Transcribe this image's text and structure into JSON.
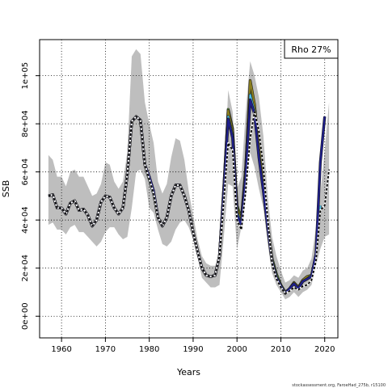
{
  "chart_data": {
    "type": "line",
    "title": "",
    "xlabel": "Years",
    "ylabel": "SSB",
    "xlim": [
      1955,
      2023
    ],
    "ylim": [
      -9000,
      115000
    ],
    "x_ticks": [
      1960,
      1970,
      1980,
      1990,
      2000,
      2010,
      2020
    ],
    "y_ticks": [
      0,
      20000,
      40000,
      60000,
      80000,
      100000
    ],
    "y_tick_labels": [
      "0e+00",
      "2e+04",
      "4e+04",
      "6e+04",
      "8e+04",
      "1e+05"
    ],
    "grid": true,
    "legend": {
      "placement": "top-right",
      "text": "Rho 27%"
    },
    "footer": "stockassessment.org, FaroeHad_275b, r15100",
    "colors": {
      "band": "#bebebe",
      "final": "#000000",
      "retro_peels": [
        "#1e1e8c",
        "#4cc0e8",
        "#8a7e1e",
        "#72c43c"
      ],
      "outline": "#1f1f1f"
    },
    "confidence_band": {
      "x": [
        1957,
        1958,
        1959,
        1960,
        1961,
        1962,
        1963,
        1964,
        1965,
        1966,
        1967,
        1968,
        1969,
        1970,
        1971,
        1972,
        1973,
        1974,
        1975,
        1976,
        1977,
        1978,
        1979,
        1980,
        1981,
        1982,
        1983,
        1984,
        1985,
        1986,
        1987,
        1988,
        1989,
        1990,
        1991,
        1992,
        1993,
        1994,
        1995,
        1996,
        1997,
        1998,
        1999,
        2000,
        2001,
        2002,
        2003,
        2004,
        2005,
        2006,
        2007,
        2008,
        2009,
        2010,
        2011,
        2012,
        2013,
        2014,
        2015,
        2016,
        2017,
        2018,
        2019,
        2020,
        2021
      ],
      "lower": [
        38000,
        39000,
        36000,
        36000,
        34000,
        37000,
        38000,
        35000,
        35000,
        33000,
        31000,
        29000,
        31000,
        35000,
        37000,
        37000,
        34000,
        32000,
        33000,
        45000,
        60000,
        61000,
        57000,
        45000,
        43000,
        36000,
        30000,
        29000,
        31000,
        36000,
        39000,
        40000,
        37000,
        32000,
        25000,
        16000,
        14000,
        12000,
        12000,
        13000,
        33000,
        55000,
        54000,
        28000,
        37000,
        60000,
        68000,
        62000,
        53000,
        45000,
        30000,
        18000,
        13000,
        10000,
        7000,
        8000,
        10000,
        8000,
        10000,
        11000,
        13000,
        21000,
        28000,
        33000,
        34000
      ],
      "upper": [
        67000,
        65000,
        58000,
        58000,
        54000,
        60000,
        61000,
        58000,
        58000,
        54000,
        50000,
        51000,
        55000,
        64000,
        63000,
        56000,
        53000,
        56000,
        68000,
        108000,
        111000,
        109000,
        89000,
        80000,
        72000,
        56000,
        51000,
        55000,
        66000,
        74000,
        73000,
        65000,
        52000,
        42000,
        32000,
        25000,
        22000,
        21000,
        21000,
        24000,
        55000,
        94000,
        85000,
        53000,
        58000,
        85000,
        106000,
        100000,
        91000,
        75000,
        50000,
        33000,
        25000,
        19000,
        14000,
        15000,
        17000,
        16000,
        19000,
        20000,
        24000,
        37000,
        51000,
        69000,
        89000
      ]
    },
    "series": [
      {
        "name": "",
        "color_key": "retro_peels.3",
        "x": [
          1957,
          1958,
          1959,
          1960,
          1961,
          1962,
          1963,
          1964,
          1965,
          1966,
          1967,
          1968,
          1969,
          1970,
          1971,
          1972,
          1973,
          1974,
          1975,
          1976,
          1977,
          1978,
          1979,
          1980,
          1981,
          1982,
          1983,
          1984,
          1985,
          1986,
          1987,
          1988,
          1989,
          1990,
          1991,
          1992,
          1993,
          1994,
          1995,
          1996,
          1997,
          1998,
          1999,
          2000,
          2001,
          2002,
          2003,
          2004,
          2005,
          2006,
          2007,
          2008,
          2009,
          2010,
          2011,
          2012,
          2013,
          2014,
          2015,
          2016
        ],
        "y": [
          50000,
          50500,
          45000,
          45000,
          42500,
          47000,
          48000,
          44000,
          44500,
          42000,
          37500,
          40000,
          47500,
          50000,
          49500,
          45000,
          42500,
          45000,
          59000,
          81000,
          83000,
          81500,
          63000,
          57000,
          51000,
          41000,
          37500,
          41000,
          50000,
          54500,
          54500,
          50000,
          44000,
          35000,
          27000,
          20000,
          17000,
          16500,
          17000,
          25000,
          53500,
          86000,
          78000,
          46000,
          40500,
          62000,
          95000,
          87000,
          69000,
          54000,
          38000,
          24000,
          17500,
          13000,
          10000,
          11500,
          14000,
          12000,
          15000,
          16000
        ]
      },
      {
        "name": "",
        "color_key": "retro_peels.2",
        "x": [
          1957,
          1958,
          1959,
          1960,
          1961,
          1962,
          1963,
          1964,
          1965,
          1966,
          1967,
          1968,
          1969,
          1970,
          1971,
          1972,
          1973,
          1974,
          1975,
          1976,
          1977,
          1978,
          1979,
          1980,
          1981,
          1982,
          1983,
          1984,
          1985,
          1986,
          1987,
          1988,
          1989,
          1990,
          1991,
          1992,
          1993,
          1994,
          1995,
          1996,
          1997,
          1998,
          1999,
          2000,
          2001,
          2002,
          2003,
          2004,
          2005,
          2006,
          2007,
          2008,
          2009,
          2010,
          2011,
          2012,
          2013,
          2014,
          2015,
          2016,
          2017
        ],
        "y": [
          50000,
          50500,
          45000,
          45000,
          42500,
          47000,
          48000,
          44000,
          44500,
          42000,
          37500,
          40000,
          47500,
          50000,
          49500,
          45000,
          42500,
          45000,
          59000,
          81000,
          83000,
          81500,
          63000,
          57000,
          51000,
          41000,
          37500,
          41000,
          50000,
          54500,
          54500,
          50000,
          44000,
          35000,
          27000,
          20000,
          17000,
          16500,
          17000,
          25000,
          53500,
          85500,
          77000,
          45000,
          39500,
          61000,
          98000,
          88000,
          70000,
          55000,
          38000,
          23000,
          16500,
          12500,
          9500,
          11500,
          14000,
          12000,
          15000,
          16500,
          17000
        ]
      },
      {
        "name": "",
        "color_key": "retro_peels.1",
        "x": [
          1957,
          1958,
          1959,
          1960,
          1961,
          1962,
          1963,
          1964,
          1965,
          1966,
          1967,
          1968,
          1969,
          1970,
          1971,
          1972,
          1973,
          1974,
          1975,
          1976,
          1977,
          1978,
          1979,
          1980,
          1981,
          1982,
          1983,
          1984,
          1985,
          1986,
          1987,
          1988,
          1989,
          1990,
          1991,
          1992,
          1993,
          1994,
          1995,
          1996,
          1997,
          1998,
          1999,
          2000,
          2001,
          2002,
          2003,
          2004,
          2005,
          2006,
          2007,
          2008,
          2009,
          2010,
          2011,
          2012,
          2013,
          2014,
          2015,
          2016,
          2017,
          2018,
          2019
        ],
        "y": [
          50000,
          50500,
          45000,
          45000,
          42500,
          47000,
          48000,
          44000,
          44500,
          42000,
          37500,
          40000,
          47500,
          50000,
          49500,
          45000,
          42500,
          45000,
          59000,
          81000,
          83000,
          81500,
          63000,
          57000,
          51000,
          41000,
          37500,
          41000,
          50000,
          54500,
          54500,
          50000,
          44000,
          35000,
          27000,
          20000,
          17000,
          16500,
          17000,
          25000,
          52000,
          83000,
          75000,
          43000,
          38500,
          59000,
          92000,
          85000,
          67000,
          52500,
          37000,
          23000,
          16500,
          12500,
          9500,
          11500,
          13500,
          11500,
          14500,
          15500,
          17000,
          25000,
          46000
        ]
      },
      {
        "name": "",
        "color_key": "retro_peels.0",
        "x": [
          1957,
          1958,
          1959,
          1960,
          1961,
          1962,
          1963,
          1964,
          1965,
          1966,
          1967,
          1968,
          1969,
          1970,
          1971,
          1972,
          1973,
          1974,
          1975,
          1976,
          1977,
          1978,
          1979,
          1980,
          1981,
          1982,
          1983,
          1984,
          1985,
          1986,
          1987,
          1988,
          1989,
          1990,
          1991,
          1992,
          1993,
          1994,
          1995,
          1996,
          1997,
          1998,
          1999,
          2000,
          2001,
          2002,
          2003,
          2004,
          2005,
          2006,
          2007,
          2008,
          2009,
          2010,
          2011,
          2012,
          2013,
          2014,
          2015,
          2016,
          2017,
          2018,
          2019,
          2020
        ],
        "y": [
          50000,
          50500,
          45000,
          45000,
          42500,
          47000,
          48000,
          44000,
          44500,
          42000,
          37500,
          40000,
          47500,
          50000,
          49500,
          45000,
          42500,
          45000,
          59000,
          81000,
          83000,
          81500,
          63000,
          58000,
          52000,
          41000,
          37500,
          41000,
          50000,
          54500,
          54500,
          50000,
          44000,
          35000,
          27000,
          20000,
          17000,
          16500,
          17000,
          25000,
          52000,
          82000,
          74000,
          42000,
          38000,
          58000,
          90000,
          84000,
          66000,
          52000,
          36500,
          22500,
          16000,
          12500,
          9500,
          11500,
          13500,
          11500,
          14500,
          15500,
          16500,
          26000,
          64000,
          83000
        ]
      },
      {
        "name": "",
        "color_key": "final",
        "dashed": true,
        "x": [
          1957,
          1958,
          1959,
          1960,
          1961,
          1962,
          1963,
          1964,
          1965,
          1966,
          1967,
          1968,
          1969,
          1970,
          1971,
          1972,
          1973,
          1974,
          1975,
          1976,
          1977,
          1978,
          1979,
          1980,
          1981,
          1982,
          1983,
          1984,
          1985,
          1986,
          1987,
          1988,
          1989,
          1990,
          1991,
          1992,
          1993,
          1994,
          1995,
          1996,
          1997,
          1998,
          1999,
          2000,
          2001,
          2002,
          2003,
          2004,
          2005,
          2006,
          2007,
          2008,
          2009,
          2010,
          2011,
          2012,
          2013,
          2014,
          2015,
          2016,
          2017,
          2018,
          2019,
          2020,
          2021
        ],
        "y": [
          50000,
          50500,
          45000,
          45000,
          42500,
          47000,
          48000,
          44000,
          44500,
          42000,
          37500,
          40000,
          47500,
          50000,
          49500,
          45000,
          42500,
          45000,
          59000,
          81000,
          83000,
          81500,
          63000,
          57000,
          51000,
          41000,
          37500,
          41000,
          50000,
          54500,
          54500,
          50000,
          44000,
          35000,
          27000,
          20000,
          17000,
          16500,
          17000,
          25000,
          48000,
          72000,
          69000,
          40000,
          36000,
          52000,
          74000,
          85000,
          77000,
          62000,
          40000,
          22000,
          15500,
          12000,
          9500,
          10500,
          12000,
          11000,
          12500,
          13000,
          15000,
          23000,
          44000,
          46000,
          61000
        ]
      }
    ]
  }
}
